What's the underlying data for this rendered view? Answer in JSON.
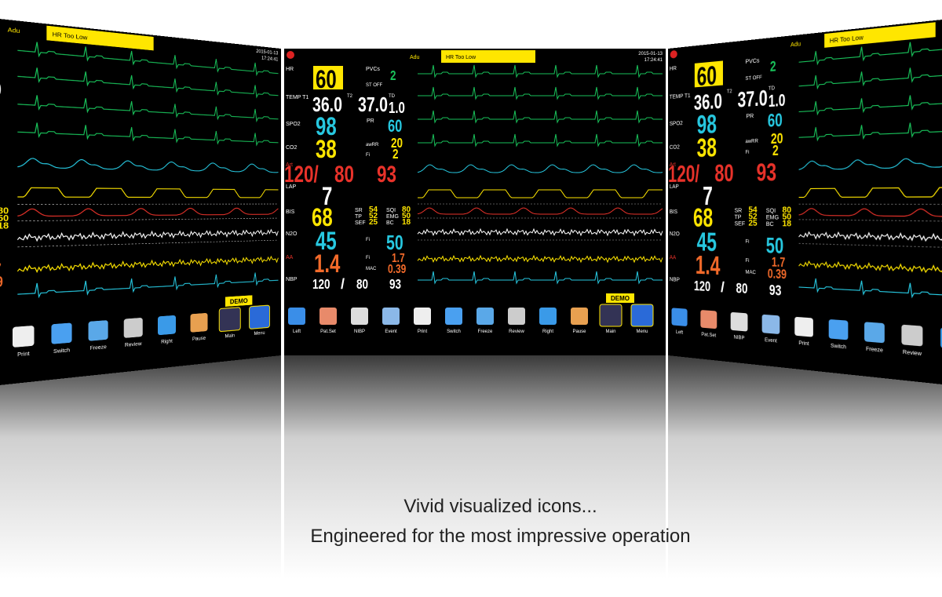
{
  "monitor": {
    "mode": "Adu",
    "alarm": "HR Too Low",
    "date": "2015-01-13",
    "time": "17:24:41",
    "demo": "DEMO",
    "labels": {
      "hr": "HR",
      "pvcs": "PVCs",
      "st": "ST OFF",
      "temp": "TEMP T1",
      "t2": "T2",
      "td": "TD",
      "spo2": "SPO2",
      "pr": "PR",
      "co2": "CO2",
      "awrr": "awRR",
      "fi": "Fi",
      "art": "Art",
      "lap": "LAP",
      "bis": "BIS",
      "n2o": "N2O",
      "aa": "AA",
      "mac": "MAC",
      "nbp": "NBP"
    },
    "values": {
      "hr": "60",
      "pvcs": "2",
      "temp1": "36.0",
      "temp2": "37.0",
      "td": "1.0",
      "spo2": "98",
      "pr": "60",
      "co2": "38",
      "awrr": "20",
      "co2fi": "2",
      "art": "120/",
      "art_dia": "80",
      "art_mean": "93",
      "lap": "7",
      "bis": "68",
      "sr": "54",
      "tp": "52",
      "sef": "25",
      "sqi": "80",
      "emg": "50",
      "bc": "18",
      "n2o": "45",
      "n2o_fi": "50",
      "aa": "1.4",
      "aa_fi": "1.7",
      "mac": "0.39",
      "nbp": "120",
      "nbp_sep": "/",
      "nbp_dia": "80",
      "nbp_mean": "93"
    },
    "bis_labels": {
      "sr": "SR",
      "tp": "TP",
      "sef": "SEF",
      "sqi": "SQI",
      "emg": "EMG",
      "bc": "BC"
    },
    "buttons": [
      "Left",
      "Pat.Set",
      "NIBP",
      "Event",
      "Print",
      "Switch",
      "Freeze",
      "Review",
      "Right",
      "Pause",
      "Main",
      "Menu"
    ]
  },
  "caption": {
    "line1": "Vivid visualized icons...",
    "line2": "Engineered for the most impressive operation"
  }
}
